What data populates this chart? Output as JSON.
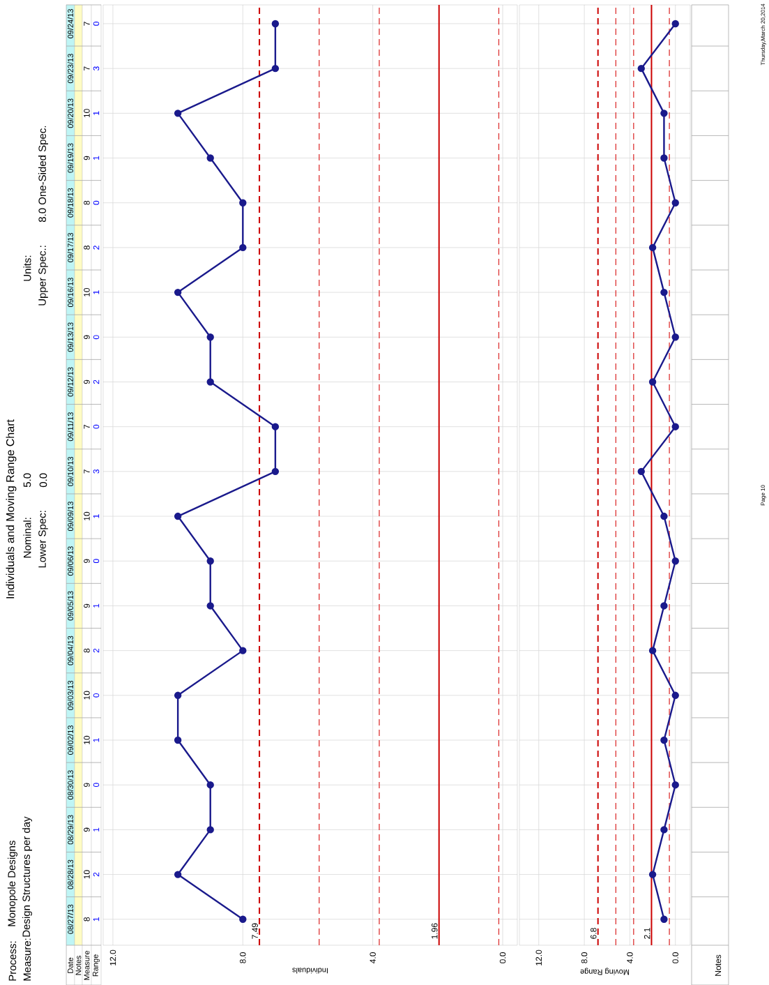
{
  "chart_data": [
    {
      "type": "line",
      "orientation": "horizontal",
      "title": "Individuals and Moving Range Chart",
      "xlabel": "Individuals",
      "categories": [
        "09/24/13",
        "09/23/13",
        "09/20/13",
        "09/19/13",
        "09/18/13",
        "09/17/13",
        "09/16/13",
        "09/13/13",
        "09/12/13",
        "09/11/13",
        "09/10/13",
        "09/09/13",
        "09/06/13",
        "09/05/13",
        "09/04/13",
        "09/03/13",
        "09/02/13",
        "08/30/13",
        "08/29/13",
        "08/28/13",
        "08/27/13"
      ],
      "values": [
        7,
        7,
        10,
        9,
        8,
        8,
        10,
        9,
        9,
        7,
        7,
        10,
        9,
        9,
        8,
        10,
        10,
        9,
        9,
        10,
        8
      ],
      "color": "#1a1a8c",
      "marker": "circle",
      "line_style": "solid",
      "data_labels": true,
      "grid": true,
      "xlim": [
        12.3,
        -0.45
      ],
      "xticks": [
        {
          "value": 0,
          "label": "0.0"
        },
        {
          "value": 4,
          "label": "4.0"
        },
        {
          "value": 8,
          "label": "8.0"
        },
        {
          "value": 12,
          "label": "12.0"
        }
      ],
      "ref_lines": [
        {
          "axis": "x",
          "value": 7.49,
          "label": "7.49",
          "color": "#cc0000",
          "line_style": "dashed"
        },
        {
          "axis": "x",
          "value": 5.65,
          "color": "#dd3333",
          "line_style": "dashed"
        },
        {
          "axis": "x",
          "value": 3.8,
          "color": "#dd3333",
          "line_style": "dashed"
        },
        {
          "axis": "x",
          "value": 1.96,
          "label": "1.96",
          "color": "#cc0000",
          "line_style": "solid"
        },
        {
          "axis": "x",
          "value": 0.12,
          "color": "#dd3333",
          "line_style": "dashed"
        }
      ],
      "annotations": [
        "Process:",
        "Monopole Designs",
        "Measure:",
        "Design Structures per day",
        "Nominal:",
        "5.0",
        "Lower Spec:",
        "0.0",
        "Units:",
        "Upper Spec.:",
        "8.0 One-Sided Spec.",
        "Date",
        "Notes",
        "Measure",
        "Range",
        "Page 10",
        "Thursday,March 20,2014"
      ]
    },
    {
      "type": "line",
      "orientation": "horizontal",
      "xlabel": "Moving Range",
      "categories": [
        null,
        null,
        null,
        null,
        null,
        null,
        null,
        null,
        null,
        null,
        null,
        null,
        null,
        null,
        null,
        null,
        null,
        null,
        null,
        null,
        null
      ],
      "values": [
        0,
        3,
        1,
        1,
        0,
        2,
        1,
        0,
        2,
        0,
        3,
        1,
        0,
        1,
        2,
        0,
        1,
        0,
        1,
        2,
        1
      ],
      "color": "#1a1a8c",
      "marker": "circle",
      "line_style": "solid",
      "data_labels": true,
      "grid": true,
      "tick_labels": "x",
      "xlim": [
        13.7,
        -1.3
      ],
      "xticks": [
        {
          "value": 0,
          "label": "0.0"
        },
        {
          "value": 4,
          "label": "4.0"
        },
        {
          "value": 8,
          "label": "8.0"
        },
        {
          "value": 12,
          "label": "12.0"
        }
      ],
      "ref_lines": [
        {
          "axis": "x",
          "value": 6.8,
          "label": "6.8",
          "color": "#cc0000",
          "line_style": "dashed"
        },
        {
          "axis": "x",
          "value": 5.23,
          "color": "#dd3333",
          "line_style": "dashed"
        },
        {
          "axis": "x",
          "value": 3.67,
          "color": "#dd3333",
          "line_style": "dashed"
        },
        {
          "axis": "x",
          "value": 2.1,
          "label": "2.1",
          "color": "#cc0000",
          "line_style": "solid"
        },
        {
          "axis": "x",
          "value": 0.53,
          "color": "#dd3333",
          "line_style": "dashed"
        }
      ],
      "annotations": [
        "Notes"
      ]
    }
  ]
}
